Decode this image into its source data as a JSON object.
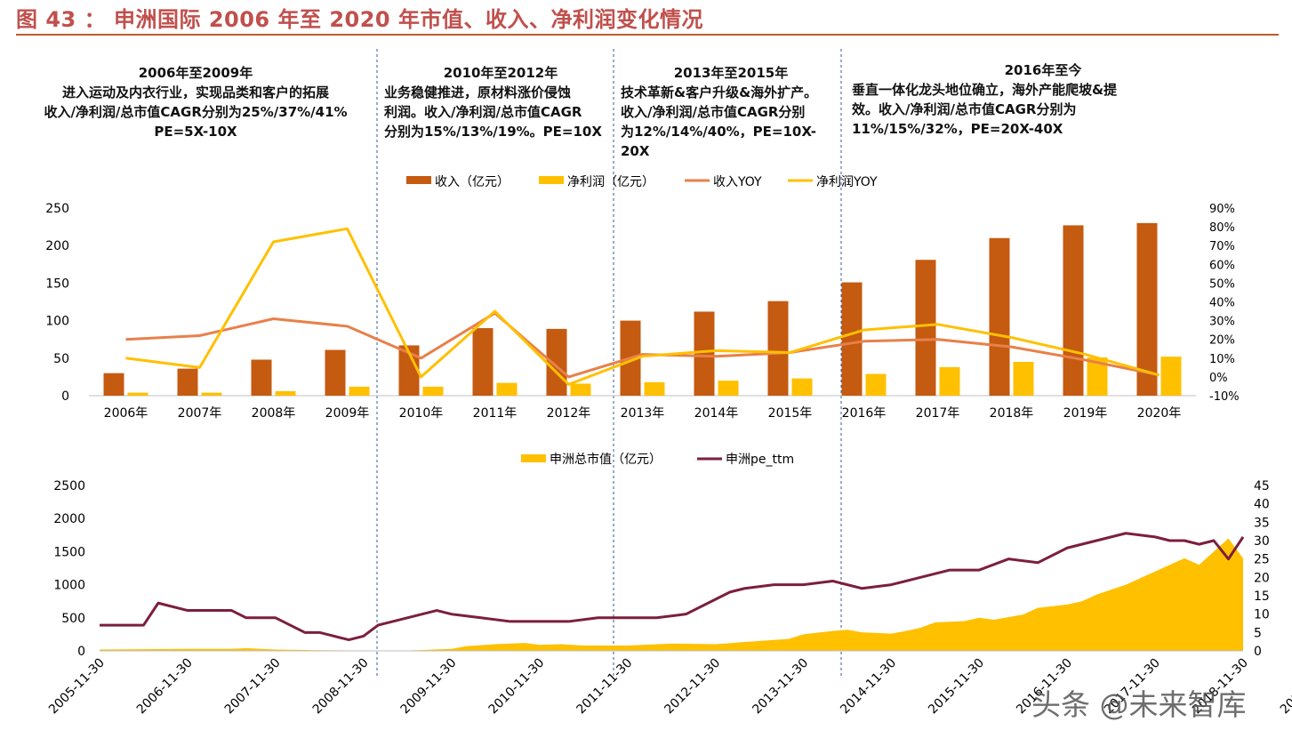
{
  "figure": {
    "title": "图 43 ： 申洲国际 2006 年至 2020 年市值、收入、净利润变化情况",
    "watermark": "头条 @未来智库"
  },
  "phases": [
    {
      "heading": "2006年至2009年",
      "lines": [
        "进入运动及内衣行业，实现品类和客户的拓展",
        "收入/净利润/总市值CAGR分别为25%/37%/41%",
        "PE=5X-10X"
      ]
    },
    {
      "heading": "2010年至2012年",
      "lines": [
        "业务稳健推进，原材料涨价侵蚀",
        "利润。收入/净利润/总市值CAGR",
        "分别为15%/13%/19%。PE=10X"
      ]
    },
    {
      "heading": "2013年至2015年",
      "lines": [
        "技术革新&客户升级&海外扩产。",
        "收入/净利润/总市值CAGR分别",
        "为12%/14%/40%，PE=10X-20X"
      ]
    },
    {
      "heading": "2016年至今",
      "lines": [
        "垂直一体化龙头地位确立，海外产能爬坡&提",
        "效。收入/净利润/总市值CAGR分别为",
        "11%/15%/32%，PE=20X-40X"
      ]
    }
  ],
  "chart_data": [
    {
      "type": "bar",
      "title": "",
      "categories": [
        "2006年",
        "2007年",
        "2008年",
        "2009年",
        "2010年",
        "2011年",
        "2012年",
        "2013年",
        "2014年",
        "2015年",
        "2016年",
        "2017年",
        "2018年",
        "2019年",
        "2020年"
      ],
      "series": [
        {
          "name": "收入（亿元）",
          "kind": "bar",
          "axis": "left",
          "color": "#c55a11",
          "values": [
            30,
            36,
            48,
            61,
            67,
            90,
            89,
            100,
            112,
            126,
            151,
            181,
            210,
            227,
            230
          ]
        },
        {
          "name": "净利润（亿元）",
          "kind": "bar",
          "axis": "left",
          "color": "#ffc000",
          "values": [
            4,
            4,
            6,
            12,
            12,
            17,
            16,
            18,
            20,
            23,
            29,
            38,
            45,
            51,
            52
          ]
        },
        {
          "name": "收入YOY",
          "kind": "line",
          "axis": "right",
          "color": "#e8804a",
          "values": [
            0.2,
            0.22,
            0.31,
            0.27,
            0.1,
            0.34,
            0.0,
            0.12,
            0.11,
            0.13,
            0.19,
            0.2,
            0.16,
            0.09,
            0.01
          ]
        },
        {
          "name": "净利润YOY",
          "kind": "line",
          "axis": "right",
          "color": "#ffc000",
          "values": [
            0.1,
            0.05,
            0.72,
            0.79,
            0.0,
            0.35,
            -0.04,
            0.11,
            0.14,
            0.13,
            0.25,
            0.28,
            0.21,
            0.12,
            0.01
          ]
        }
      ],
      "yticks_left": [
        "0",
        "50",
        "100",
        "150",
        "200",
        "250"
      ],
      "ylim_left": [
        0,
        250
      ],
      "yticks_right": [
        "-10%",
        "0%",
        "10%",
        "20%",
        "30%",
        "40%",
        "50%",
        "60%",
        "70%",
        "80%",
        "90%"
      ],
      "ylim_right": [
        -0.1,
        0.9
      ],
      "grid": false,
      "legend": "top-center"
    },
    {
      "type": "area",
      "title": "",
      "x_labels": [
        "2005-11-30",
        "2006-11-30",
        "2007-11-30",
        "2008-11-30",
        "2009-11-30",
        "2010-11-30",
        "2011-11-30",
        "2012-11-30",
        "2013-11-30",
        "2014-11-30",
        "2015-11-30",
        "2016-11-30",
        "2017-11-30",
        "2018-11-30",
        "2019-11-30",
        "2020-11-30"
      ],
      "x_range_months": [
        0,
        156
      ],
      "series": [
        {
          "name": "申洲总市值（亿元）",
          "kind": "area",
          "axis": "left",
          "color": "#ffc000",
          "x": [
            0,
            6,
            12,
            18,
            20,
            24,
            30,
            36,
            42,
            48,
            50,
            54,
            58,
            60,
            63,
            66,
            72,
            78,
            84,
            90,
            94,
            96,
            100,
            102,
            104,
            108,
            110,
            112,
            114,
            118,
            120,
            122,
            126,
            128,
            132,
            134,
            136,
            140,
            142,
            146,
            147,
            148,
            150,
            152,
            154,
            156
          ],
          "values": [
            20,
            25,
            30,
            30,
            40,
            20,
            10,
            5,
            5,
            30,
            70,
            100,
            120,
            90,
            100,
            80,
            80,
            110,
            100,
            150,
            180,
            250,
            300,
            320,
            280,
            260,
            300,
            350,
            430,
            450,
            500,
            470,
            550,
            650,
            700,
            750,
            850,
            1000,
            1100,
            1300,
            1350,
            1400,
            1300,
            1500,
            1700,
            1400
          ]
        },
        {
          "name": "申洲pe_ttm",
          "kind": "line",
          "axis": "right",
          "color": "#7b1f3c",
          "x": [
            0,
            6,
            8,
            12,
            18,
            20,
            24,
            28,
            30,
            32,
            34,
            36,
            38,
            40,
            42,
            44,
            46,
            48,
            52,
            56,
            60,
            64,
            68,
            72,
            76,
            80,
            84,
            86,
            88,
            92,
            96,
            100,
            104,
            108,
            112,
            116,
            120,
            124,
            128,
            132,
            134,
            136,
            140,
            144,
            146,
            148,
            150,
            152,
            154,
            156
          ],
          "values": [
            7,
            7,
            13,
            11,
            11,
            9,
            9,
            5,
            5,
            4,
            3,
            4,
            7,
            8,
            9,
            10,
            11,
            10,
            9,
            8,
            8,
            8,
            9,
            9,
            9,
            10,
            14,
            16,
            17,
            18,
            18,
            19,
            17,
            18,
            20,
            22,
            22,
            25,
            24,
            28,
            29,
            30,
            32,
            31,
            30,
            30,
            29,
            30,
            25,
            31
          ]
        }
      ],
      "yticks_left": [
        "0",
        "500",
        "1000",
        "1500",
        "2000",
        "2500"
      ],
      "ylim_left": [
        0,
        2500
      ],
      "yticks_right": [
        "0",
        "5",
        "10",
        "15",
        "20",
        "25",
        "30",
        "35",
        "40",
        "45"
      ],
      "ylim_right": [
        0,
        45
      ],
      "grid": false,
      "legend": "top-center"
    }
  ]
}
